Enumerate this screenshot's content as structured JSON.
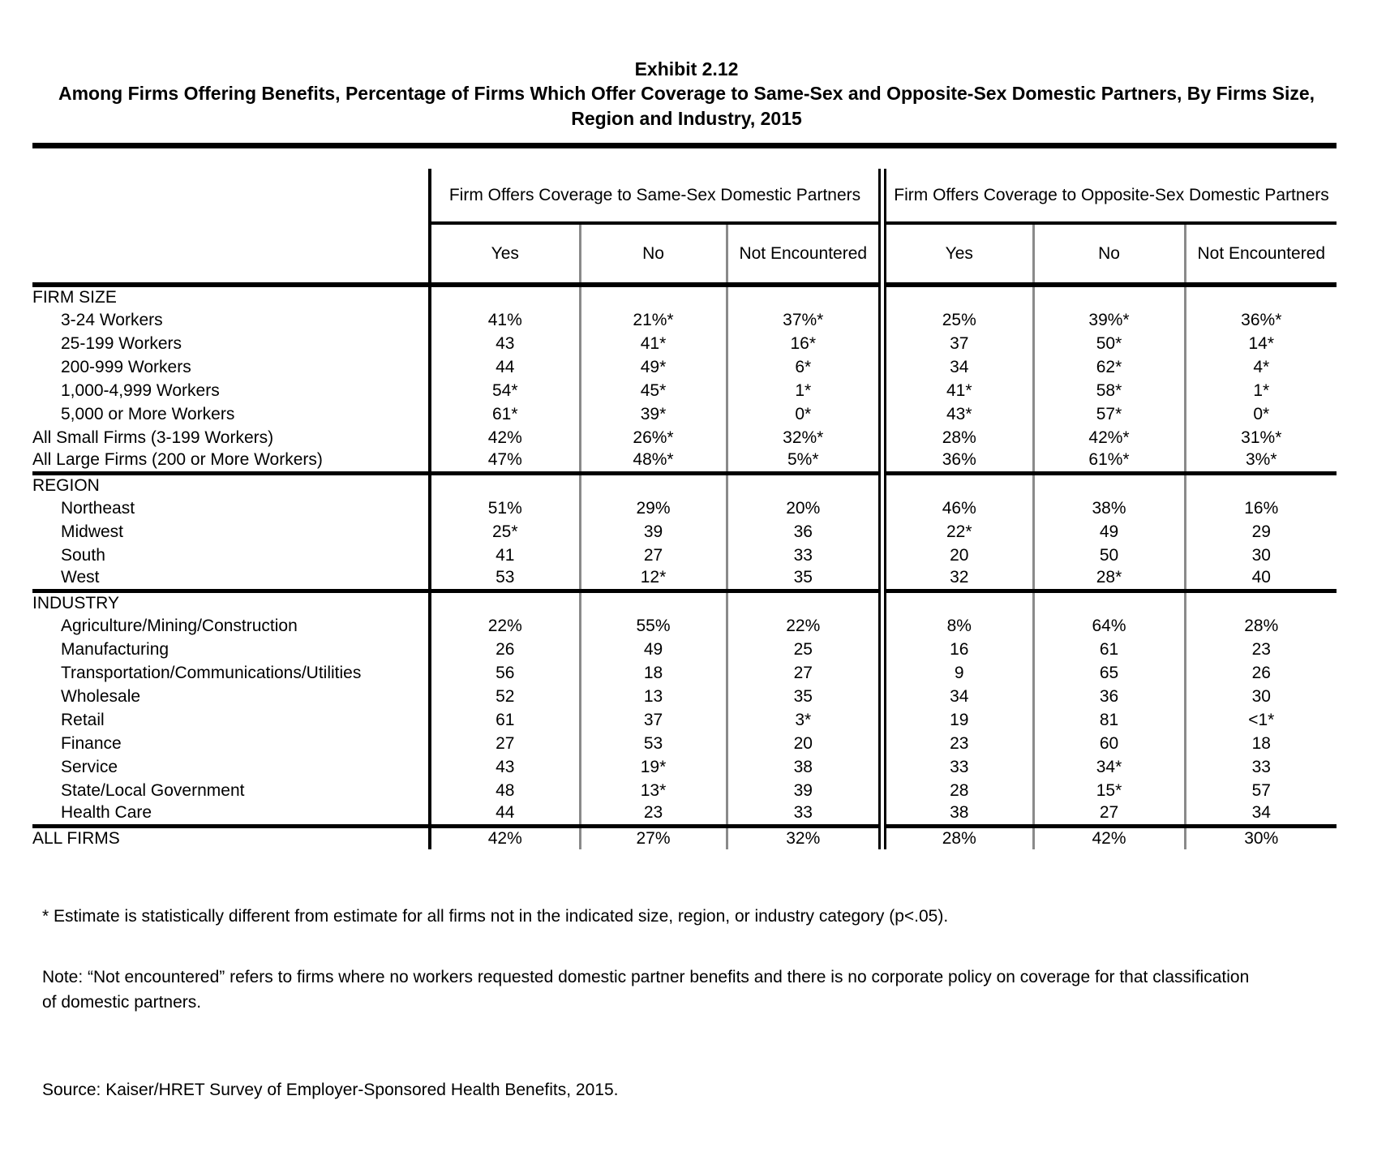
{
  "title": {
    "exhibit_number": "Exhibit 2.12",
    "exhibit_title": "Among Firms Offering Benefits, Percentage of Firms Which Offer Coverage to Same-Sex and Opposite-Sex Domestic Partners, By Firms Size, Region and Industry, 2015"
  },
  "colors": {
    "text": "#000000",
    "rule_black": "#000000",
    "separator_gray": "#8a8a8a"
  },
  "table": {
    "group_headers": [
      "Firm Offers Coverage to Same-Sex Domestic Partners",
      "Firm Offers Coverage to Opposite-Sex Domestic Partners"
    ],
    "sub_headers": [
      "Yes",
      "No",
      "Not Encountered",
      "Yes",
      "No",
      "Not Encountered"
    ],
    "sections": [
      {
        "header": "FIRM SIZE",
        "rows": [
          {
            "label": "3-24 Workers",
            "bold": false,
            "values": [
              "41%",
              "21%*",
              "37%*",
              "25%",
              "39%*",
              "36%*"
            ]
          },
          {
            "label": "25-199 Workers",
            "bold": false,
            "values": [
              "43",
              "41*",
              "16*",
              "37",
              "50*",
              "14*"
            ]
          },
          {
            "label": "200-999 Workers",
            "bold": false,
            "values": [
              "44",
              "49*",
              "6*",
              "34",
              "62*",
              "4*"
            ]
          },
          {
            "label": "1,000-4,999 Workers",
            "bold": false,
            "values": [
              "54*",
              "45*",
              "1*",
              "41*",
              "58*",
              "1*"
            ]
          },
          {
            "label": "5,000 or More Workers",
            "bold": false,
            "values": [
              "61*",
              "39*",
              "0*",
              "43*",
              "57*",
              "0*"
            ]
          },
          {
            "label": "All Small Firms (3-199 Workers)",
            "bold": true,
            "values": [
              "42%",
              "26%*",
              "32%*",
              "28%",
              "42%*",
              "31%*"
            ]
          },
          {
            "label": "All Large Firms (200 or More Workers)",
            "bold": true,
            "values": [
              "47%",
              "48%*",
              "5%*",
              "36%",
              "61%*",
              "3%*"
            ]
          }
        ]
      },
      {
        "header": "REGION",
        "rows": [
          {
            "label": "Northeast",
            "bold": false,
            "values": [
              "51%",
              "29%",
              "20%",
              "46%",
              "38%",
              "16%"
            ]
          },
          {
            "label": "Midwest",
            "bold": false,
            "values": [
              "25*",
              "39",
              "36",
              "22*",
              "49",
              "29"
            ]
          },
          {
            "label": "South",
            "bold": false,
            "values": [
              "41",
              "27",
              "33",
              "20",
              "50",
              "30"
            ]
          },
          {
            "label": "West",
            "bold": false,
            "values": [
              "53",
              "12*",
              "35",
              "32",
              "28*",
              "40"
            ]
          }
        ]
      },
      {
        "header": "INDUSTRY",
        "rows": [
          {
            "label": "Agriculture/Mining/Construction",
            "bold": false,
            "values": [
              "22%",
              "55%",
              "22%",
              "8%",
              "64%",
              "28%"
            ]
          },
          {
            "label": "Manufacturing",
            "bold": false,
            "values": [
              "26",
              "49",
              "25",
              "16",
              "61",
              "23"
            ]
          },
          {
            "label": "Transportation/Communications/Utilities",
            "bold": false,
            "values": [
              "56",
              "18",
              "27",
              "9",
              "65",
              "26"
            ]
          },
          {
            "label": "Wholesale",
            "bold": false,
            "values": [
              "52",
              "13",
              "35",
              "34",
              "36",
              "30"
            ]
          },
          {
            "label": "Retail",
            "bold": false,
            "values": [
              "61",
              "37",
              "3*",
              "19",
              "81",
              "<1*"
            ]
          },
          {
            "label": "Finance",
            "bold": false,
            "values": [
              "27",
              "53",
              "20",
              "23",
              "60",
              "18"
            ]
          },
          {
            "label": "Service",
            "bold": false,
            "values": [
              "43",
              "19*",
              "38",
              "33",
              "34*",
              "33"
            ]
          },
          {
            "label": "State/Local Government",
            "bold": false,
            "values": [
              "48",
              "13*",
              "39",
              "28",
              "15*",
              "57"
            ]
          },
          {
            "label": "Health Care",
            "bold": false,
            "values": [
              "44",
              "23",
              "33",
              "38",
              "27",
              "34"
            ]
          }
        ]
      }
    ],
    "total_row": {
      "label": "ALL FIRMS",
      "bold": true,
      "values": [
        "42%",
        "27%",
        "32%",
        "28%",
        "42%",
        "30%"
      ]
    }
  },
  "footnotes": {
    "asterisk": "* Estimate is statistically different from estimate for all firms not in the indicated size, region, or industry category (p<.05).",
    "note": "Note: “Not encountered” refers to firms where no workers requested domestic partner benefits and there is no corporate policy on coverage for that classification of domestic partners.",
    "source": "Source: Kaiser/HRET Survey of Employer-Sponsored Health Benefits, 2015."
  }
}
